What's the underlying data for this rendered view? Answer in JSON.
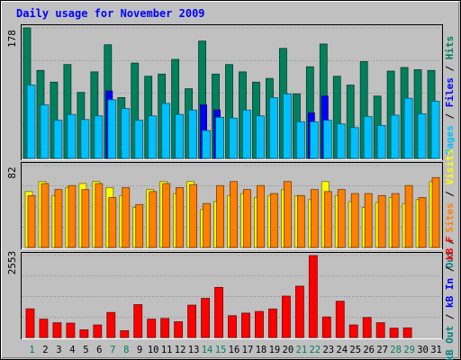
{
  "chart_data": {
    "type": "bar",
    "title": "Daily usage for November 2009",
    "categories": [
      "1",
      "2",
      "3",
      "4",
      "5",
      "6",
      "7",
      "8",
      "9",
      "10",
      "11",
      "12",
      "13",
      "14",
      "15",
      "16",
      "17",
      "18",
      "19",
      "20",
      "21",
      "22",
      "23",
      "24",
      "25",
      "26",
      "27",
      "28",
      "29",
      "30",
      "31"
    ],
    "weekend_days": [
      "1",
      "7",
      "8",
      "14",
      "15",
      "21",
      "22",
      "28",
      "29"
    ],
    "panels": [
      {
        "max_label": "178",
        "ylim": [
          0,
          178
        ],
        "legend": [
          "Hits",
          "Files",
          "Pages"
        ],
        "series": [
          {
            "name": "Hits",
            "color": "#00805c",
            "values": [
              178,
              120,
              104,
              128,
              90,
              118,
              155,
              83,
              130,
              112,
              115,
              135,
              95,
              160,
              115,
              128,
              118,
              104,
              109,
              150,
              88,
              125,
              156,
              112,
              100,
              132,
              85,
              119,
              124,
              121,
              120
            ]
          },
          {
            "name": "Files",
            "color": "#0000ff",
            "values": [
              0,
              0,
              0,
              0,
              0,
              0,
              92,
              0,
              0,
              0,
              0,
              0,
              0,
              73,
              66,
              0,
              0,
              0,
              0,
              0,
              0,
              62,
              85,
              0,
              0,
              0,
              0,
              0,
              0,
              0,
              0
            ]
          },
          {
            "name": "Pages",
            "color": "#00c0ff",
            "values": [
              100,
              73,
              52,
              60,
              53,
              58,
              80,
              68,
              52,
              58,
              75,
              60,
              66,
              38,
              56,
              55,
              66,
              58,
              83,
              88,
              50,
              50,
              52,
              47,
              42,
              57,
              45,
              59,
              82,
              61,
              78
            ]
          }
        ]
      },
      {
        "max_label": "82",
        "ylim": [
          0,
          82
        ],
        "legend": [
          "Visits",
          "Sites",
          "Out"
        ],
        "series": [
          {
            "name": "Visits",
            "color": "#ffff00",
            "values": [
              56,
              66,
              52,
              60,
              64,
              66,
              60,
              52,
              40,
              58,
              66,
              54,
              66,
              38,
              46,
              52,
              54,
              50,
              52,
              58,
              52,
              48,
              66,
              52,
              46,
              40,
              45,
              50,
              44,
              48,
              66
            ]
          },
          {
            "name": "Sites",
            "color": "#ff8000",
            "values": [
              52,
              64,
              58,
              62,
              58,
              64,
              50,
              60,
              43,
              56,
              64,
              60,
              63,
              44,
              62,
              66,
              58,
              62,
              54,
              66,
              52,
              58,
              56,
              58,
              54,
              54,
              52,
              54,
              62,
              50,
              70
            ]
          }
        ]
      },
      {
        "max_label": "2553",
        "ylim": [
          0,
          2553
        ],
        "legend": [
          "kB F",
          "kB In",
          "kB Out"
        ],
        "series": [
          {
            "name": "kB F",
            "color": "#ff0000",
            "values": [
              893,
              571,
              458,
              448,
              240,
              390,
              780,
              212,
              1024,
              572,
              592,
              490,
              1008,
              1220,
              1562,
              680,
              760,
              810,
              890,
              1290,
              1600,
              2553,
              640,
              1130,
              390,
              620,
              460,
              290,
              300,
              0,
              0
            ]
          }
        ]
      }
    ]
  }
}
